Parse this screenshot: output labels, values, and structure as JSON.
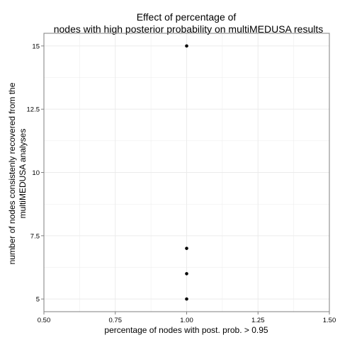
{
  "chart_data": {
    "type": "scatter",
    "title_lines": [
      "Effect of percentage of",
      "nodes with high posterior probability on multiMEDUSA results"
    ],
    "xlabel": "percentage of nodes with post. prob. > 0.95",
    "ylabel_lines": [
      "number of nodes consistenly recovered from the",
      "multiMEDUSA analyses"
    ],
    "xlim": [
      0.5,
      1.5
    ],
    "ylim": [
      4.5,
      15.5
    ],
    "x_ticks": [
      0.5,
      0.75,
      1.0,
      1.25,
      1.5
    ],
    "x_tick_labels": [
      "0.50",
      "0.75",
      "1.00",
      "1.25",
      "1.50"
    ],
    "y_ticks": [
      5,
      7.5,
      10,
      12.5,
      15
    ],
    "y_tick_labels": [
      "5",
      "7.5",
      "10",
      "12.5",
      "15"
    ],
    "grid": true,
    "points": [
      {
        "x": 1.0,
        "y": 15
      },
      {
        "x": 1.0,
        "y": 7
      },
      {
        "x": 1.0,
        "y": 6
      },
      {
        "x": 1.0,
        "y": 5
      }
    ],
    "point_color": "#000000",
    "grid_color": "#ebebeb",
    "panel_border_color": "#7f7f7f"
  }
}
